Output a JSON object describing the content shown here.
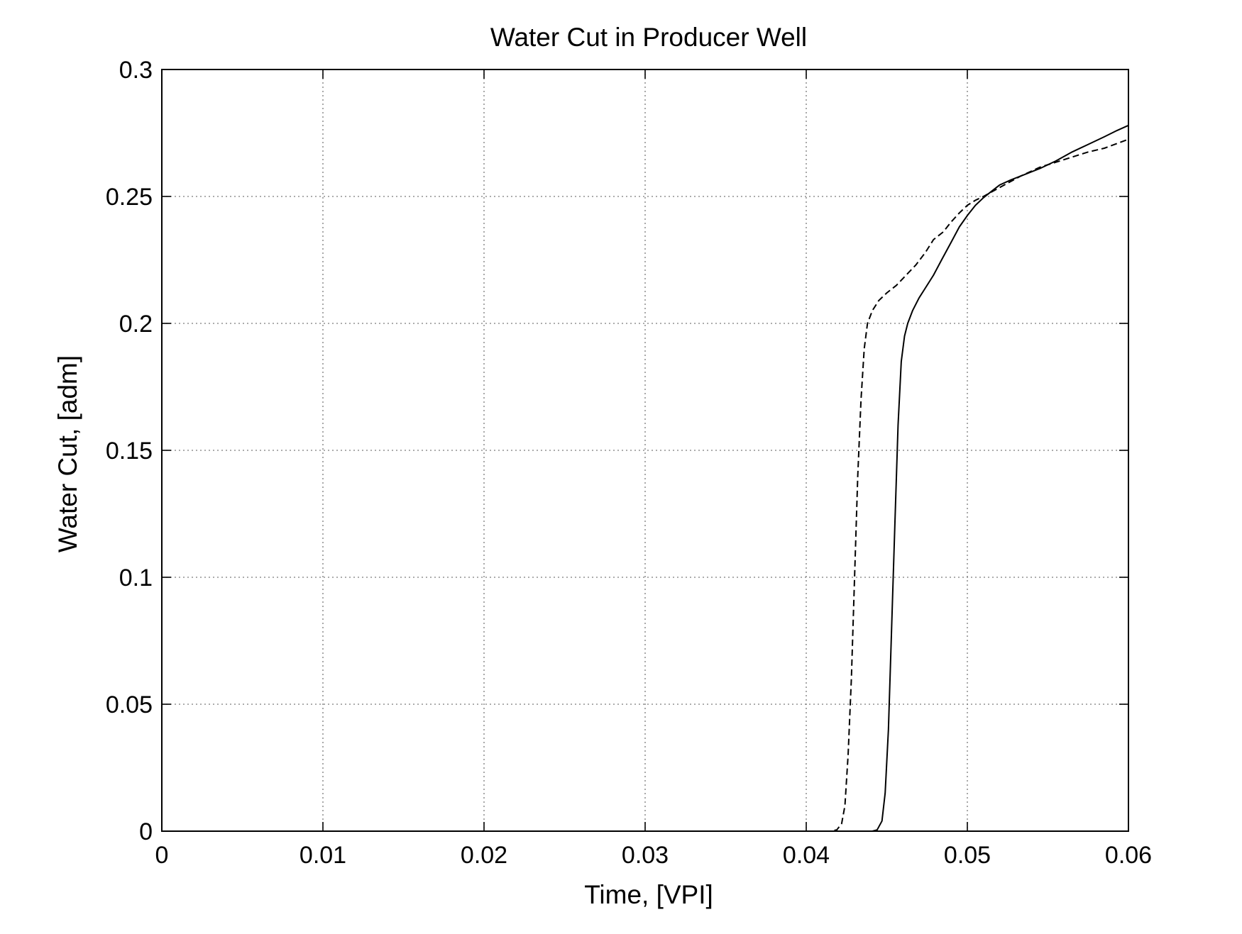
{
  "chart_data": {
    "type": "line",
    "title": "Water Cut in Producer Well",
    "xlabel": "Time, [VPI]",
    "ylabel": "Water Cut, [adm]",
    "xlim": [
      0,
      0.06
    ],
    "ylim": [
      0,
      0.3
    ],
    "x_ticks": [
      0,
      0.01,
      0.02,
      0.03,
      0.04,
      0.05,
      0.06
    ],
    "x_tick_labels": [
      "0",
      "0.01",
      "0.02",
      "0.03",
      "0.04",
      "0.05",
      "0.06"
    ],
    "y_ticks": [
      0,
      0.05,
      0.1,
      0.15,
      0.2,
      0.25,
      0.3
    ],
    "y_tick_labels": [
      "0",
      "0.05",
      "0.1",
      "0.15",
      "0.2",
      "0.25",
      "0.3"
    ],
    "grid": true,
    "legend": "none",
    "series": [
      {
        "style": "solid",
        "color": "#000000",
        "x": [
          0.0441,
          0.0444,
          0.0447,
          0.0449,
          0.0451,
          0.0453,
          0.0455,
          0.0457,
          0.0459,
          0.0461,
          0.0463,
          0.0466,
          0.047,
          0.0474,
          0.0479,
          0.0484,
          0.049,
          0.0495,
          0.05,
          0.0505,
          0.051,
          0.0515,
          0.052,
          0.0527,
          0.0535,
          0.0545,
          0.0555,
          0.0565,
          0.0575,
          0.0585,
          0.0593,
          0.06
        ],
        "y": [
          0.0,
          0.0005,
          0.004,
          0.015,
          0.04,
          0.08,
          0.12,
          0.16,
          0.185,
          0.195,
          0.2,
          0.205,
          0.21,
          0.214,
          0.219,
          0.225,
          0.232,
          0.238,
          0.2425,
          0.2465,
          0.2495,
          0.252,
          0.2545,
          0.2565,
          0.2585,
          0.261,
          0.264,
          0.2675,
          0.2705,
          0.2735,
          0.276,
          0.278
        ]
      },
      {
        "style": "dashed",
        "color": "#000000",
        "x": [
          0.0399,
          0.0415,
          0.0419,
          0.0422,
          0.0424,
          0.0426,
          0.0428,
          0.043,
          0.0432,
          0.0434,
          0.0436,
          0.0438,
          0.0441,
          0.0445,
          0.045,
          0.0456,
          0.0462,
          0.0468,
          0.0474,
          0.0479,
          0.0485,
          0.049,
          0.0495,
          0.05,
          0.0505,
          0.051,
          0.052,
          0.0533,
          0.0545,
          0.0555,
          0.0565,
          0.0575,
          0.0585,
          0.06
        ],
        "y": [
          0.0,
          0.0,
          0.0005,
          0.003,
          0.01,
          0.03,
          0.06,
          0.1,
          0.14,
          0.17,
          0.19,
          0.2,
          0.205,
          0.209,
          0.212,
          0.215,
          0.219,
          0.223,
          0.228,
          0.233,
          0.236,
          0.24,
          0.2435,
          0.2465,
          0.2485,
          0.25,
          0.2535,
          0.258,
          0.2615,
          0.2635,
          0.2655,
          0.2675,
          0.269,
          0.2725
        ]
      }
    ]
  }
}
